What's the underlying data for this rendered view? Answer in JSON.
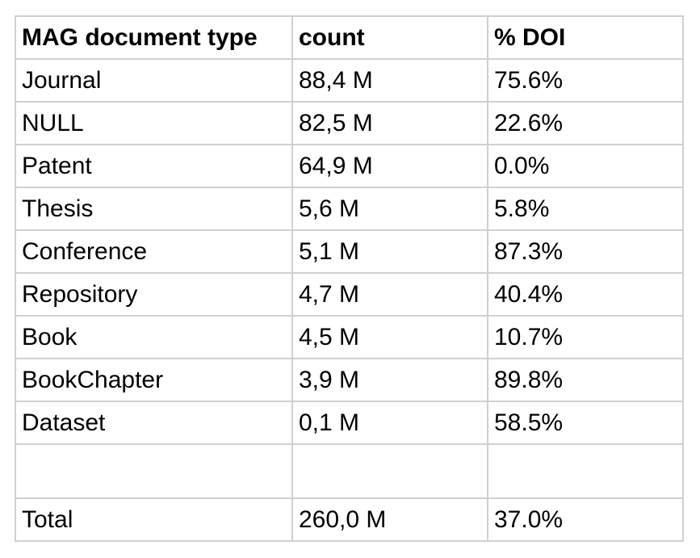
{
  "table": {
    "headers": [
      "MAG document type",
      "count",
      "% DOI"
    ],
    "rows": [
      [
        "Journal",
        "88,4 M",
        "75.6%"
      ],
      [
        "NULL",
        "82,5 M",
        "22.6%"
      ],
      [
        "Patent",
        "64,9 M",
        "0.0%"
      ],
      [
        "Thesis",
        "5,6 M",
        "5.8%"
      ],
      [
        "Conference",
        "5,1 M",
        "87.3%"
      ],
      [
        "Repository",
        "4,7 M",
        "40.4%"
      ],
      [
        "Book",
        "4,5 M",
        "10.7%"
      ],
      [
        "BookChapter",
        "3,9 M",
        "89.8%"
      ],
      [
        "Dataset",
        "0,1 M",
        "58.5%"
      ],
      [
        "",
        "",
        ""
      ],
      [
        "Total",
        "260,0 M",
        "37.0%"
      ]
    ]
  }
}
